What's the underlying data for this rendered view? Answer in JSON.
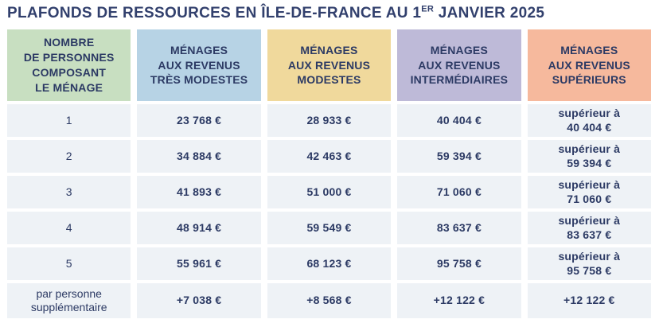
{
  "title": {
    "prefix": "PLAFONDS DE RESSOURCES EN ÎLE-DE-FRANCE AU 1",
    "superscript": "ER",
    "suffix": " JANVIER 2025"
  },
  "colors": {
    "title_text": "#32406d",
    "cell_text": "#2c3a64",
    "data_cell_bg": "#eef2f6",
    "header_green": "#c8dfc1",
    "header_blue": "#b7d3e5",
    "header_yellow": "#f0d99c",
    "header_purple": "#bebad8",
    "header_salmon": "#f6b99d"
  },
  "table": {
    "headers": [
      {
        "label": "NOMBRE\nDE PERSONNES\nCOMPOSANT\nLE MÉNAGE",
        "bg": "#c8dfc1"
      },
      {
        "label": "MÉNAGES\nAUX REVENUS\nTRÈS MODESTES",
        "bg": "#b7d3e5"
      },
      {
        "label": "MÉNAGES\nAUX REVENUS\nMODESTES",
        "bg": "#f0d99c"
      },
      {
        "label": "MÉNAGES\nAUX REVENUS\nINTERMÉDIAIRES",
        "bg": "#bebad8"
      },
      {
        "label": "MÉNAGES\nAUX REVENUS\nSUPÉRIEURS",
        "bg": "#f6b99d"
      }
    ],
    "rows": [
      {
        "cells": [
          "1",
          "23 768 €",
          "28 933 €",
          "40 404 €",
          "supérieur à\n40 404 €"
        ]
      },
      {
        "cells": [
          "2",
          "34 884 €",
          "42 463 €",
          "59 394 €",
          "supérieur à\n59 394 €"
        ]
      },
      {
        "cells": [
          "3",
          "41 893 €",
          "51 000 €",
          "71 060 €",
          "supérieur à\n71 060 €"
        ]
      },
      {
        "cells": [
          "4",
          "48 914 €",
          "59 549 €",
          "83 637 €",
          "supérieur à\n83 637 €"
        ]
      },
      {
        "cells": [
          "5",
          "55 961 €",
          "68 123 €",
          "95 758 €",
          "supérieur à\n95 758 €"
        ]
      },
      {
        "cells": [
          "par personne\nsupplémentaire",
          "+7 038 €",
          "+8 568 €",
          "+12 122 €",
          "+12 122 €"
        ]
      }
    ]
  }
}
